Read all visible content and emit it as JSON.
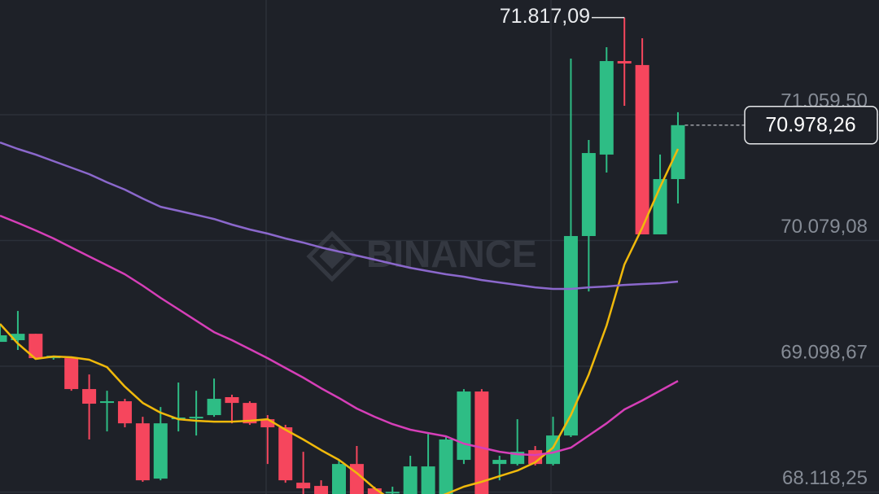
{
  "chart_data": {
    "type": "candlestick",
    "watermark": "BINANCE",
    "open": [
      69289,
      69302,
      69352,
      69162,
      69162,
      68921,
      68813,
      68826,
      68654,
      68223,
      68686,
      68699,
      68718,
      68858,
      68813,
      68686,
      68623,
      68191,
      68166,
      68060,
      68337,
      68147,
      68115,
      68060,
      68060,
      68060,
      68369,
      68902,
      68337,
      68337,
      68445,
      68337,
      68559,
      70114,
      70749,
      71478,
      71447,
      70127,
      70558
    ],
    "high": [
      69416,
      69530,
      69352,
      69181,
      69162,
      69035,
      68908,
      68845,
      68705,
      68781,
      68972,
      68908,
      69003,
      68877,
      68826,
      68718,
      68642,
      68432,
      68210,
      68369,
      68477,
      68160,
      68160,
      68401,
      68572,
      68547,
      68921,
      68921,
      68401,
      68686,
      68477,
      68705,
      71497,
      70863,
      71586,
      71817.09,
      71656,
      70749,
      71079
    ],
    "low": [
      69289,
      69226,
      69150,
      69150,
      68908,
      68528,
      68591,
      68623,
      68198,
      68210,
      68591,
      68559,
      68705,
      68654,
      68642,
      68337,
      68191,
      68060,
      68060,
      68060,
      68060,
      68060,
      68060,
      68060,
      68060,
      68060,
      68337,
      68060,
      68210,
      68325,
      68325,
      68325,
      68547,
      69682,
      70609,
      71129,
      70127,
      70127,
      70368
    ],
    "close": [
      69340,
      69352,
      69162,
      69181,
      68921,
      68807,
      68826,
      68654,
      68210,
      68654,
      68699,
      68705,
      68845,
      68813,
      68654,
      68623,
      68210,
      68147,
      68103,
      68337,
      68070,
      68103,
      68120,
      68318,
      68318,
      68528,
      68902,
      68070,
      68369,
      68432,
      68337,
      68559,
      70114,
      70761,
      71478,
      71459,
      70127,
      70558,
      70978.26
    ],
    "up_color": "#2ebd85",
    "down_color": "#f6465d",
    "high_label": "71.817,09",
    "high_index": 35,
    "close_label": "70.978,26",
    "series": [
      {
        "color": "#f0b90b",
        "values": [
          69429,
          69276,
          69156,
          69175,
          69169,
          69150,
          69092,
          68940,
          68813,
          68737,
          68686,
          68674,
          68667,
          68667,
          68674,
          68686,
          68604,
          68528,
          68445,
          68369,
          68267,
          68147,
          68052,
          67988,
          68052,
          68103,
          68160,
          68198,
          68242,
          68286,
          68350,
          68464,
          68718,
          69035,
          69416,
          69892,
          70178,
          70495,
          70793
        ]
      },
      {
        "color": "#d63fb8",
        "values": [
          70273,
          70216,
          70158,
          70095,
          70025,
          69955,
          69886,
          69816,
          69727,
          69632,
          69543,
          69454,
          69365,
          69302,
          69232,
          69162,
          69086,
          69010,
          68927,
          68851,
          68769,
          68705,
          68648,
          68604,
          68578,
          68553,
          68496,
          68464,
          68432,
          68413,
          68407,
          68426,
          68464,
          68559,
          68654,
          68762,
          68832,
          68908,
          68984
        ]
      },
      {
        "color": "#8b68cc",
        "values": [
          70844,
          70793,
          70749,
          70698,
          70647,
          70596,
          70533,
          70476,
          70406,
          70342,
          70311,
          70279,
          70247,
          70203,
          70165,
          70133,
          70095,
          70063,
          70025,
          69993,
          69962,
          69930,
          69898,
          69866,
          69841,
          69816,
          69797,
          69771,
          69752,
          69733,
          69714,
          69702,
          69702,
          69714,
          69721,
          69733,
          69740,
          69746,
          69759
        ]
      }
    ],
    "ylim": [
      68103,
      71954
    ],
    "yticks": [
      {
        "value": 68118.25,
        "label": "68.118,25"
      },
      {
        "value": 69098.67,
        "label": "69.098,67"
      },
      {
        "value": 70079.08,
        "label": "70.079,08"
      },
      {
        "value": 71059.5,
        "label": "71.059,50"
      }
    ],
    "grid": true
  }
}
